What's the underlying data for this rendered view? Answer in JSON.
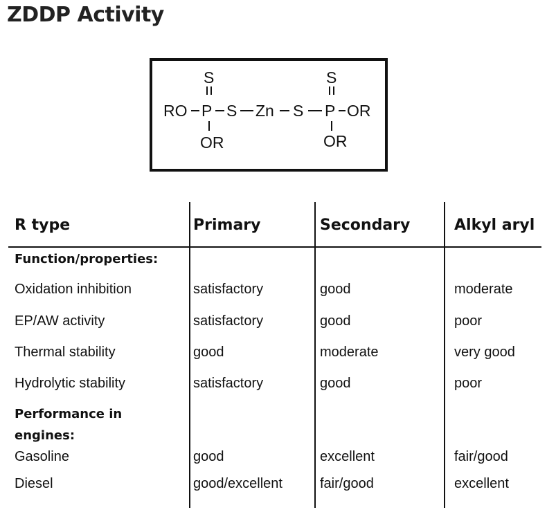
{
  "title": "ZDDP Activity",
  "structure": {
    "s_top_left": "S",
    "s_top_right": "S",
    "ro_left": "RO",
    "p_left": "P",
    "s_left": "S",
    "zn": "Zn",
    "s_right": "S",
    "p_right": "P",
    "or_right": "OR",
    "or_bottom_left": "OR",
    "or_bottom_right": "OR"
  },
  "table": {
    "headers": [
      "R  type",
      "Primary",
      "Secondary",
      "Alkyl aryl"
    ],
    "sections": [
      {
        "label": "Function/properties:",
        "rows": [
          {
            "property": "Oxidation inhibition",
            "values": [
              "satisfactory",
              "good",
              "moderate"
            ]
          },
          {
            "property": "EP/AW activity",
            "values": [
              "satisfactory",
              "good",
              "poor"
            ]
          },
          {
            "property": "Thermal stability",
            "values": [
              "good",
              "moderate",
              "very good"
            ]
          },
          {
            "property": "Hydrolytic stability",
            "values": [
              "satisfactory",
              "good",
              "poor"
            ]
          }
        ]
      },
      {
        "label_line1": "Performance in",
        "label_line2": "engines:",
        "rows": [
          {
            "property": "Gasoline",
            "values": [
              "good",
              "excellent",
              "fair/good"
            ]
          },
          {
            "property": "Diesel",
            "values": [
              "good/excellent",
              "fair/good",
              "excellent"
            ]
          }
        ]
      }
    ]
  }
}
